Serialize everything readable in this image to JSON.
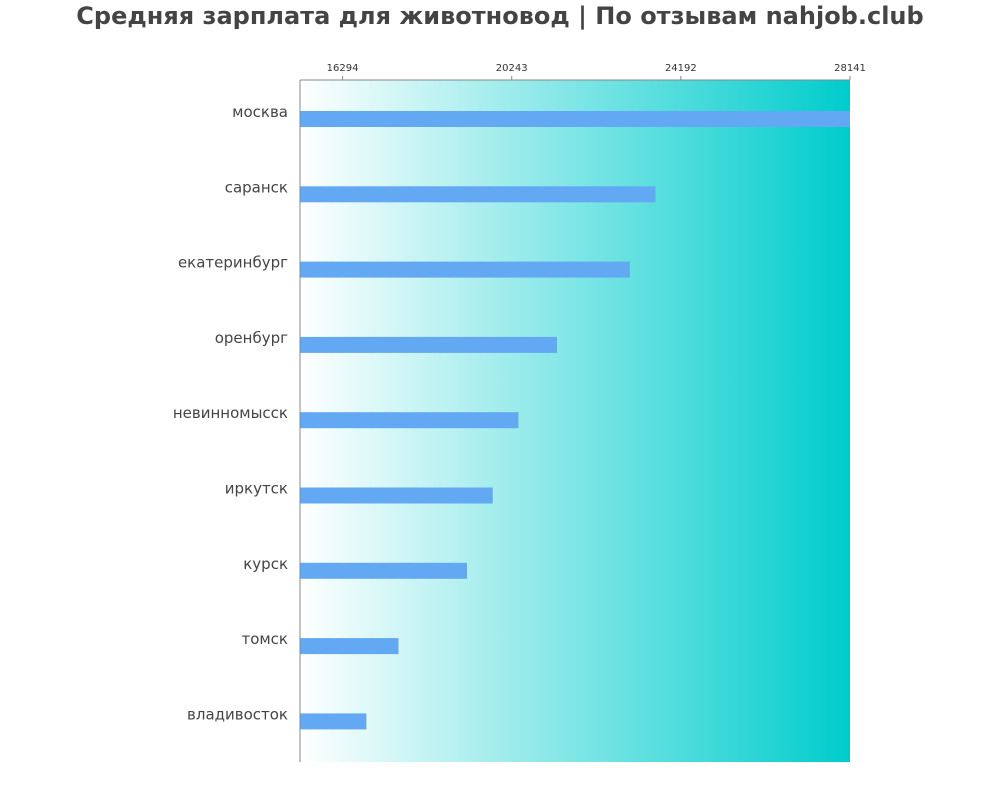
{
  "chart_data": {
    "type": "bar",
    "orientation": "horizontal",
    "title": "Средняя зарплата для животновод | По отзывам nahjob.club",
    "categories": [
      "москва",
      "саранск",
      "екатеринбург",
      "оренбург",
      "невинномысск",
      "иркутск",
      "курск",
      "томск",
      "владивосток"
    ],
    "values": [
      28141,
      23600,
      23000,
      21300,
      20400,
      19800,
      19200,
      17600,
      16850
    ],
    "xlim": [
      15300,
      28141
    ],
    "ticks": [
      16294,
      20243,
      24192,
      28141
    ],
    "tick_labels": [
      "16294",
      "20243",
      "24192",
      "28141"
    ],
    "grid": false,
    "colors": {
      "bar": "#63a8f2",
      "background_gradient_start": "#ffffff",
      "background_gradient_end": "#00cccc",
      "axis": "#888888"
    }
  }
}
